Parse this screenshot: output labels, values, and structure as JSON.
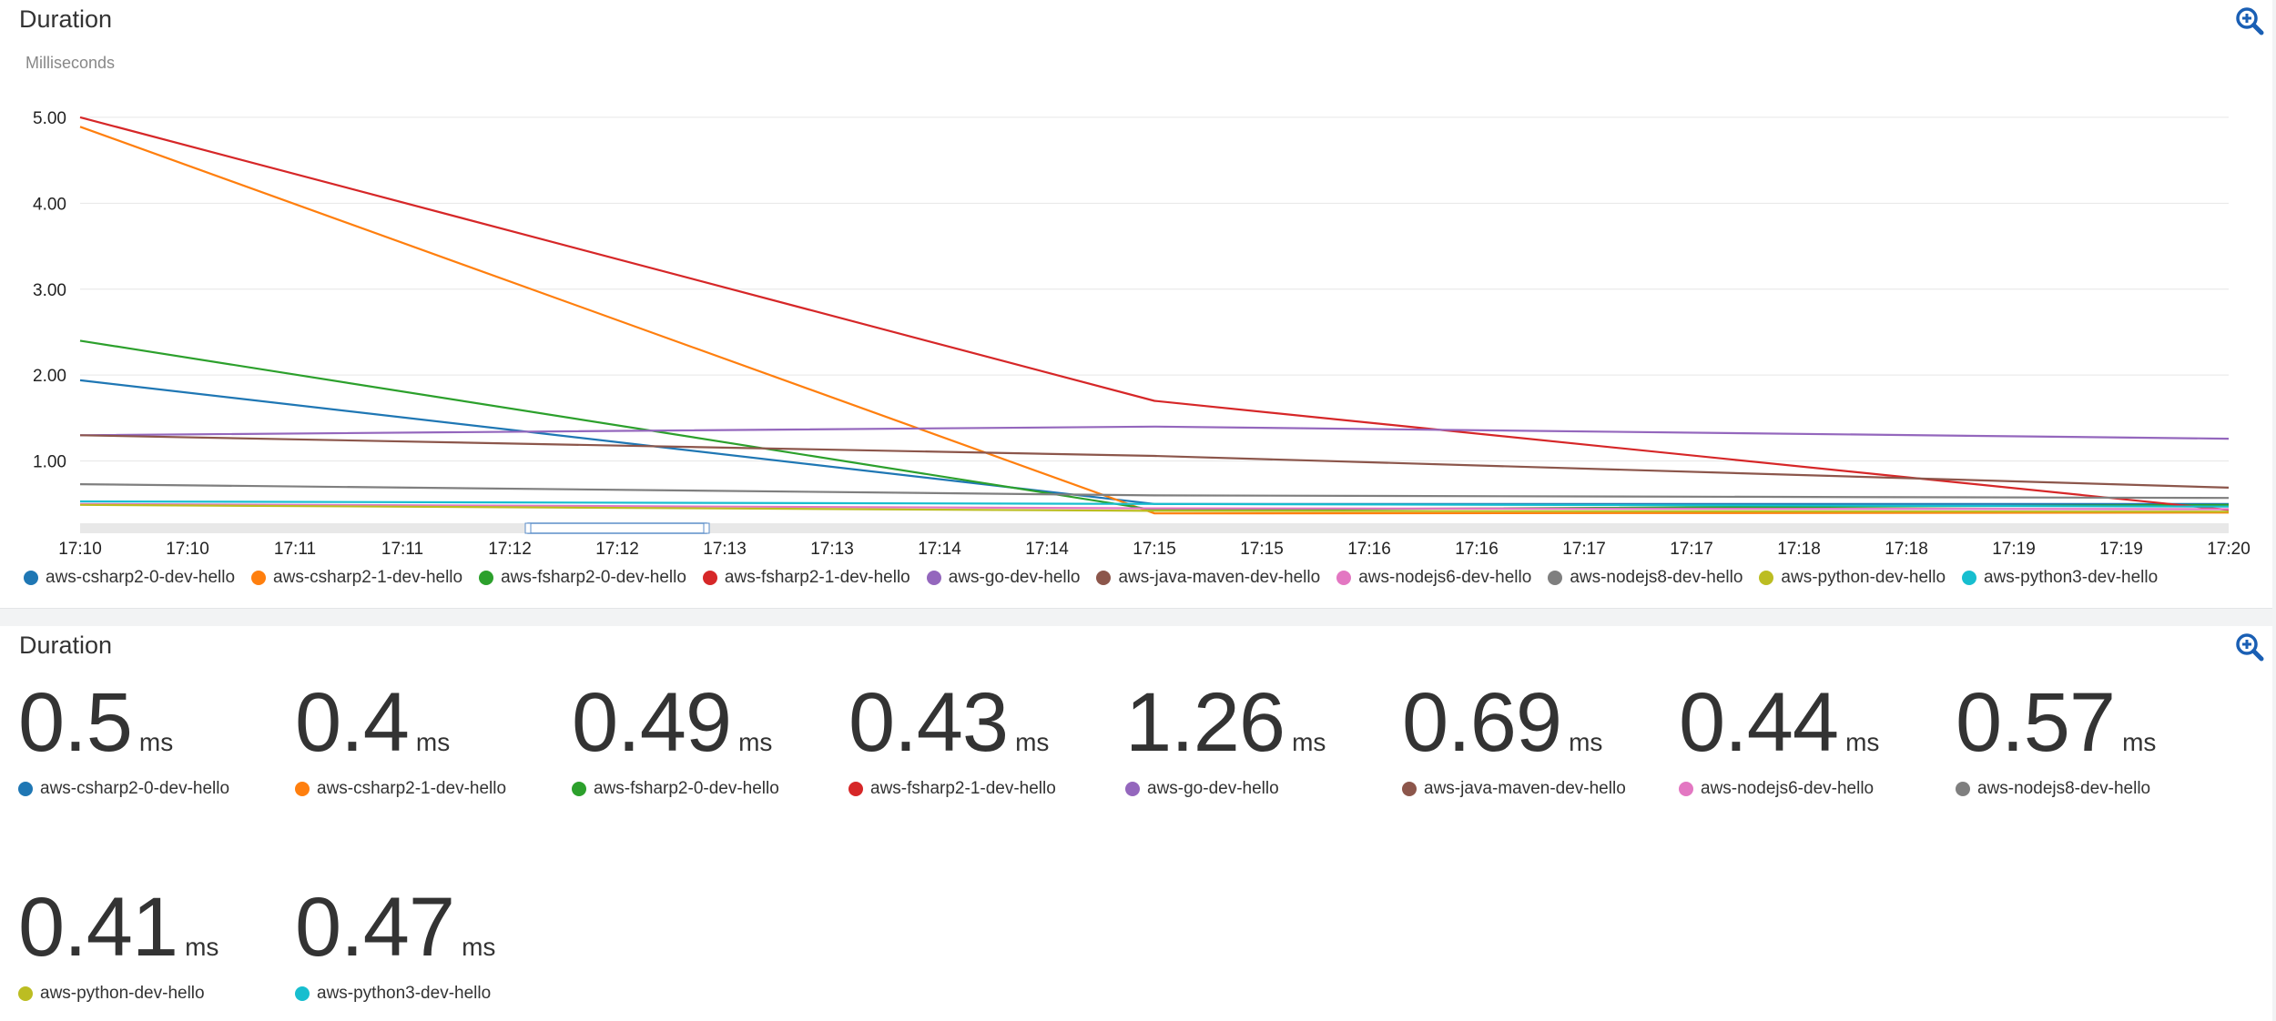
{
  "top_panel": {
    "title": "Duration",
    "zoom_icon": "zoom-in-icon"
  },
  "bottom_panel": {
    "title": "Duration",
    "zoom_icon": "zoom-in-icon"
  },
  "chart_data": {
    "type": "line",
    "title": "Duration",
    "ylabel": "Milliseconds",
    "xlabel": "",
    "ylim": [
      0.17,
      5.2
    ],
    "yticks": [
      1.0,
      2.0,
      3.0,
      4.0,
      5.0
    ],
    "ytick_labels": [
      "1.00",
      "2.00",
      "3.00",
      "4.00",
      "5.00"
    ],
    "x": [
      0,
      1,
      2,
      3,
      4,
      5,
      6,
      7,
      8,
      9,
      10,
      11,
      12,
      13,
      14,
      15,
      16,
      17,
      18,
      19,
      20
    ],
    "tick_labels": [
      "17:10",
      "17:10",
      "17:11",
      "17:11",
      "17:12",
      "17:12",
      "17:13",
      "17:13",
      "17:14",
      "17:14",
      "17:15",
      "17:15",
      "17:16",
      "17:16",
      "17:17",
      "17:17",
      "17:18",
      "17:18",
      "17:19",
      "17:19",
      "17:20"
    ],
    "series": [
      {
        "name": "aws-csharp2-0-dev-hello",
        "color": "#1f77b4",
        "x": [
          0,
          10,
          20
        ],
        "values": [
          1.94,
          0.5,
          0.5
        ]
      },
      {
        "name": "aws-csharp2-1-dev-hello",
        "color": "#ff7f0e",
        "x": [
          0,
          10,
          20
        ],
        "values": [
          4.89,
          0.39,
          0.4
        ]
      },
      {
        "name": "aws-fsharp2-0-dev-hello",
        "color": "#2ca02c",
        "x": [
          0,
          10,
          20
        ],
        "values": [
          2.4,
          0.43,
          0.49
        ]
      },
      {
        "name": "aws-fsharp2-1-dev-hello",
        "color": "#d62728",
        "x": [
          0,
          10,
          20
        ],
        "values": [
          5.0,
          1.7,
          0.43
        ]
      },
      {
        "name": "aws-go-dev-hello",
        "color": "#9467bd",
        "x": [
          0,
          10,
          20
        ],
        "values": [
          1.3,
          1.4,
          1.26
        ]
      },
      {
        "name": "aws-java-maven-dev-hello",
        "color": "#8c564b",
        "x": [
          0,
          10,
          20
        ],
        "values": [
          1.3,
          1.06,
          0.69
        ]
      },
      {
        "name": "aws-nodejs6-dev-hello",
        "color": "#e377c2",
        "x": [
          0,
          10,
          20
        ],
        "values": [
          0.5,
          0.45,
          0.44
        ]
      },
      {
        "name": "aws-nodejs8-dev-hello",
        "color": "#7f7f7f",
        "x": [
          0,
          10,
          20
        ],
        "values": [
          0.73,
          0.6,
          0.57
        ]
      },
      {
        "name": "aws-python-dev-hello",
        "color": "#bcbd22",
        "x": [
          0,
          10,
          20
        ],
        "values": [
          0.49,
          0.42,
          0.41
        ]
      },
      {
        "name": "aws-python3-dev-hello",
        "color": "#17becf",
        "x": [
          0,
          10,
          20
        ],
        "values": [
          0.53,
          0.5,
          0.47
        ]
      }
    ]
  },
  "metrics": [
    {
      "value": "0.5",
      "unit": "ms",
      "label": "aws-csharp2-0-dev-hello",
      "color": "#1f77b4"
    },
    {
      "value": "0.4",
      "unit": "ms",
      "label": "aws-csharp2-1-dev-hello",
      "color": "#ff7f0e"
    },
    {
      "value": "0.49",
      "unit": "ms",
      "label": "aws-fsharp2-0-dev-hello",
      "color": "#2ca02c"
    },
    {
      "value": "0.43",
      "unit": "ms",
      "label": "aws-fsharp2-1-dev-hello",
      "color": "#d62728"
    },
    {
      "value": "1.26",
      "unit": "ms",
      "label": "aws-go-dev-hello",
      "color": "#9467bd"
    },
    {
      "value": "0.69",
      "unit": "ms",
      "label": "aws-java-maven-dev-hello",
      "color": "#8c564b"
    },
    {
      "value": "0.44",
      "unit": "ms",
      "label": "aws-nodejs6-dev-hello",
      "color": "#e377c2"
    },
    {
      "value": "0.57",
      "unit": "ms",
      "label": "aws-nodejs8-dev-hello",
      "color": "#7f7f7f"
    },
    {
      "value": "0.41",
      "unit": "ms",
      "label": "aws-python-dev-hello",
      "color": "#bcbd22"
    },
    {
      "value": "0.47",
      "unit": "ms",
      "label": "aws-python3-dev-hello",
      "color": "#17becf"
    }
  ]
}
